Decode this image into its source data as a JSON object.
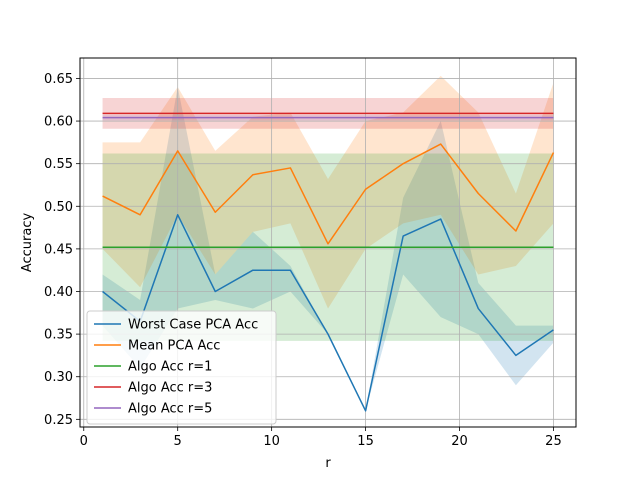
{
  "chart_data": {
    "type": "line",
    "xlabel": "r",
    "ylabel": "Accuracy",
    "xlim": [
      -0.2,
      26.2
    ],
    "ylim": [
      0.241,
      0.674
    ],
    "x_ticks": [
      0,
      5,
      10,
      15,
      20,
      25
    ],
    "y_ticks": [
      0.25,
      0.3,
      0.35,
      0.4,
      0.45,
      0.5,
      0.55,
      0.6,
      0.65
    ],
    "grid": true,
    "legend_position": "lower-left",
    "x": [
      1,
      3,
      5,
      7,
      9,
      11,
      13,
      15,
      17,
      19,
      21,
      23,
      25
    ],
    "series": [
      {
        "name": "Worst Case PCA Acc",
        "color": "#1f77b4",
        "values": [
          0.4,
          0.365,
          0.49,
          0.4,
          0.425,
          0.425,
          0.35,
          0.26,
          0.465,
          0.485,
          0.38,
          0.325,
          0.355
        ],
        "band_lower": [
          0.36,
          0.31,
          0.38,
          0.39,
          0.38,
          0.4,
          0.35,
          0.26,
          0.42,
          0.37,
          0.35,
          0.29,
          0.34
        ],
        "band_upper": [
          0.42,
          0.39,
          0.64,
          0.42,
          0.47,
          0.43,
          0.35,
          0.26,
          0.51,
          0.6,
          0.41,
          0.36,
          0.36
        ]
      },
      {
        "name": "Mean PCA Acc",
        "color": "#ff7f0e",
        "values": [
          0.512,
          0.49,
          0.565,
          0.493,
          0.537,
          0.545,
          0.456,
          0.52,
          0.55,
          0.573,
          0.515,
          0.471,
          0.563
        ],
        "band_lower": [
          0.45,
          0.405,
          0.49,
          0.42,
          0.47,
          0.48,
          0.38,
          0.45,
          0.48,
          0.49,
          0.42,
          0.43,
          0.48
        ],
        "band_upper": [
          0.575,
          0.575,
          0.64,
          0.565,
          0.605,
          0.61,
          0.532,
          0.6,
          0.61,
          0.653,
          0.61,
          0.515,
          0.645
        ]
      },
      {
        "name": "Algo Acc r=1",
        "color": "#2ca02c",
        "values": [
          0.452,
          0.452,
          0.452,
          0.452,
          0.452,
          0.452,
          0.452,
          0.452,
          0.452,
          0.452,
          0.452,
          0.452,
          0.452
        ],
        "band_lower": [
          0.342,
          0.342,
          0.342,
          0.342,
          0.342,
          0.342,
          0.342,
          0.342,
          0.342,
          0.342,
          0.342,
          0.342,
          0.342
        ],
        "band_upper": [
          0.562,
          0.562,
          0.562,
          0.562,
          0.562,
          0.562,
          0.562,
          0.562,
          0.562,
          0.562,
          0.562,
          0.562,
          0.562
        ]
      },
      {
        "name": "Algo Acc r=3",
        "color": "#d62728",
        "values": [
          0.609,
          0.609,
          0.609,
          0.609,
          0.609,
          0.609,
          0.609,
          0.609,
          0.609,
          0.609,
          0.609,
          0.609,
          0.609
        ],
        "band_lower": [
          0.591,
          0.591,
          0.591,
          0.591,
          0.591,
          0.591,
          0.591,
          0.591,
          0.591,
          0.591,
          0.591,
          0.591,
          0.591
        ],
        "band_upper": [
          0.627,
          0.627,
          0.627,
          0.627,
          0.627,
          0.627,
          0.627,
          0.627,
          0.627,
          0.627,
          0.627,
          0.627,
          0.627
        ]
      },
      {
        "name": "Algo Acc r=5",
        "color": "#9467bd",
        "values": [
          0.604,
          0.604,
          0.604,
          0.604,
          0.604,
          0.604,
          0.604,
          0.604,
          0.604,
          0.604,
          0.604,
          0.604,
          0.604
        ],
        "band_lower": [
          0.601,
          0.601,
          0.601,
          0.601,
          0.601,
          0.601,
          0.601,
          0.601,
          0.601,
          0.601,
          0.601,
          0.601,
          0.601
        ],
        "band_upper": [
          0.607,
          0.607,
          0.607,
          0.607,
          0.607,
          0.607,
          0.607,
          0.607,
          0.607,
          0.607,
          0.607,
          0.607,
          0.607
        ]
      }
    ]
  }
}
